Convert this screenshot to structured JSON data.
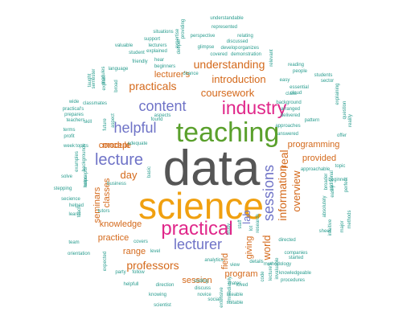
{
  "colors": {
    "gray": "#6e6e6e",
    "darkgray": "#555555",
    "green": "#5aa02c",
    "pink": "#e0278a",
    "orange": "#d4691b",
    "purple": "#6f73c7",
    "teal": "#2a9d8f",
    "yellow": "#f0a010",
    "blue": "#4a78b5"
  },
  "words": [
    {
      "text": "data",
      "size": 62,
      "color": "darkgray",
      "rotate": 0
    },
    {
      "text": "science",
      "size": 46,
      "color": "yellow",
      "rotate": 0
    },
    {
      "text": "teaching",
      "size": 34,
      "color": "green",
      "rotate": 0
    },
    {
      "text": "industry",
      "size": 23,
      "color": "pink",
      "rotate": 0
    },
    {
      "text": "practical",
      "size": 24,
      "color": "pink",
      "rotate": 0
    },
    {
      "text": "lecturer",
      "size": 18,
      "color": "purple",
      "rotate": 0
    },
    {
      "text": "lecture",
      "size": 20,
      "color": "purple",
      "rotate": 0
    },
    {
      "text": "helpful",
      "size": 18,
      "color": "purple",
      "rotate": 0
    },
    {
      "text": "content",
      "size": 18,
      "color": "purple",
      "rotate": 0
    },
    {
      "text": "sessions",
      "size": 18,
      "color": "purple",
      "rotate": 90
    },
    {
      "text": "information",
      "size": 14,
      "color": "orange",
      "rotate": 90
    },
    {
      "text": "real",
      "size": 14,
      "color": "orange",
      "rotate": 90
    },
    {
      "text": "overview",
      "size": 13,
      "color": "orange",
      "rotate": 90
    },
    {
      "text": "world",
      "size": 13,
      "color": "orange",
      "rotate": 90
    },
    {
      "text": "lab",
      "size": 13,
      "color": "purple",
      "rotate": 90
    },
    {
      "text": "professors",
      "size": 14,
      "color": "orange",
      "rotate": 0
    },
    {
      "text": "understanding",
      "size": 14,
      "color": "orange",
      "rotate": 0
    },
    {
      "text": "practicals",
      "size": 14,
      "color": "orange",
      "rotate": 0
    },
    {
      "text": "coursework",
      "size": 13,
      "color": "orange",
      "rotate": 0
    },
    {
      "text": "introduction",
      "size": 13,
      "color": "orange",
      "rotate": 0
    },
    {
      "text": "lecturer's",
      "size": 11,
      "color": "orange",
      "rotate": 0
    },
    {
      "text": "module",
      "size": 11,
      "color": "orange",
      "rotate": 0
    },
    {
      "text": "concept",
      "size": 11,
      "color": "orange",
      "rotate": 0
    },
    {
      "text": "day",
      "size": 13,
      "color": "orange",
      "rotate": 0
    },
    {
      "text": "knowledge",
      "size": 11,
      "color": "orange",
      "rotate": 0
    },
    {
      "text": "practice",
      "size": 11,
      "color": "orange",
      "rotate": 0
    },
    {
      "text": "range",
      "size": 11,
      "color": "orange",
      "rotate": 0
    },
    {
      "text": "session",
      "size": 11,
      "color": "orange",
      "rotate": 0
    },
    {
      "text": "program",
      "size": 11,
      "color": "orange",
      "rotate": 0
    },
    {
      "text": "programming",
      "size": 11,
      "color": "orange",
      "rotate": 0
    },
    {
      "text": "provided",
      "size": 11,
      "color": "orange",
      "rotate": 0
    },
    {
      "text": "giving",
      "size": 11,
      "color": "orange",
      "rotate": 90
    },
    {
      "text": "field",
      "size": 11,
      "color": "orange",
      "rotate": 90
    },
    {
      "text": "classes",
      "size": 11,
      "color": "orange",
      "rotate": 90
    },
    {
      "text": "seminars",
      "size": 11,
      "color": "orange",
      "rotate": 90
    },
    {
      "text": "situations",
      "size": 6,
      "color": "teal",
      "rotate": 0
    },
    {
      "text": "support",
      "size": 6,
      "color": "teal",
      "rotate": 0
    },
    {
      "text": "lecturers",
      "size": 6,
      "color": "teal",
      "rotate": 0
    },
    {
      "text": "explained",
      "size": 6,
      "color": "teal",
      "rotate": 0
    },
    {
      "text": "valuable",
      "size": 6,
      "color": "teal",
      "rotate": 0
    },
    {
      "text": "student",
      "size": 6,
      "color": "teal",
      "rotate": 0
    },
    {
      "text": "friendly",
      "size": 6,
      "color": "teal",
      "rotate": 0
    },
    {
      "text": "hear",
      "size": 6,
      "color": "teal",
      "rotate": 0
    },
    {
      "text": "beginners",
      "size": 6,
      "color": "teal",
      "rotate": 0
    },
    {
      "text": "language",
      "size": 6,
      "color": "teal",
      "rotate": 0
    },
    {
      "text": "understandable",
      "size": 6,
      "color": "teal",
      "rotate": 0
    },
    {
      "text": "represented",
      "size": 6,
      "color": "teal",
      "rotate": 0
    },
    {
      "text": "perspective",
      "size": 6,
      "color": "teal",
      "rotate": 0
    },
    {
      "text": "relating",
      "size": 6,
      "color": "teal",
      "rotate": 0
    },
    {
      "text": "discussed",
      "size": 6,
      "color": "teal",
      "rotate": 0
    },
    {
      "text": "glimpse",
      "size": 6,
      "color": "teal",
      "rotate": 0
    },
    {
      "text": "develop",
      "size": 6,
      "color": "teal",
      "rotate": 0
    },
    {
      "text": "organizes",
      "size": 6,
      "color": "teal",
      "rotate": 0
    },
    {
      "text": "covered",
      "size": 6,
      "color": "teal",
      "rotate": 0
    },
    {
      "text": "demonstration",
      "size": 6,
      "color": "teal",
      "rotate": 0
    },
    {
      "text": "chance",
      "size": 6,
      "color": "teal",
      "rotate": 0
    },
    {
      "text": "reading",
      "size": 6,
      "color": "teal",
      "rotate": 0
    },
    {
      "text": "people",
      "size": 6,
      "color": "teal",
      "rotate": 0
    },
    {
      "text": "students",
      "size": 6,
      "color": "teal",
      "rotate": 0
    },
    {
      "text": "easy",
      "size": 6,
      "color": "teal",
      "rotate": 0
    },
    {
      "text": "sector",
      "size": 6,
      "color": "teal",
      "rotate": 0
    },
    {
      "text": "class",
      "size": 6,
      "color": "teal",
      "rotate": 0
    },
    {
      "text": "essential",
      "size": 6,
      "color": "teal",
      "rotate": 0
    },
    {
      "text": "cloud",
      "size": 6,
      "color": "teal",
      "rotate": 0
    },
    {
      "text": "background",
      "size": 6,
      "color": "teal",
      "rotate": 0
    },
    {
      "text": "arranged",
      "size": 6,
      "color": "teal",
      "rotate": 0
    },
    {
      "text": "delivered",
      "size": 6,
      "color": "teal",
      "rotate": 0
    },
    {
      "text": "approaches",
      "size": 6,
      "color": "teal",
      "rotate": 0
    },
    {
      "text": "answered",
      "size": 6,
      "color": "teal",
      "rotate": 0
    },
    {
      "text": "wide",
      "size": 6,
      "color": "teal",
      "rotate": 0
    },
    {
      "text": "practical's",
      "size": 6,
      "color": "teal",
      "rotate": 0
    },
    {
      "text": "prepares",
      "size": 6,
      "color": "teal",
      "rotate": 0
    },
    {
      "text": "teachers",
      "size": 6,
      "color": "teal",
      "rotate": 0
    },
    {
      "text": "skill",
      "size": 6,
      "color": "teal",
      "rotate": 0
    },
    {
      "text": "terms",
      "size": 6,
      "color": "teal",
      "rotate": 0
    },
    {
      "text": "profit",
      "size": 6,
      "color": "teal",
      "rotate": 0
    },
    {
      "text": "week",
      "size": 6,
      "color": "teal",
      "rotate": 0
    },
    {
      "text": "topics",
      "size": 6,
      "color": "teal",
      "rotate": 0
    },
    {
      "text": "solve",
      "size": 6,
      "color": "teal",
      "rotate": 0
    },
    {
      "text": "stepping",
      "size": 6,
      "color": "teal",
      "rotate": 0
    },
    {
      "text": "secience",
      "size": 6,
      "color": "teal",
      "rotate": 0
    },
    {
      "text": "helped",
      "size": 6,
      "color": "teal",
      "rotate": 0
    },
    {
      "text": "learnt",
      "size": 6,
      "color": "teal",
      "rotate": 0
    },
    {
      "text": "team",
      "size": 6,
      "color": "teal",
      "rotate": 0
    },
    {
      "text": "orientation",
      "size": 6,
      "color": "teal",
      "rotate": 0
    },
    {
      "text": "adequate",
      "size": 6,
      "color": "teal",
      "rotate": 0
    },
    {
      "text": "business",
      "size": 6,
      "color": "teal",
      "rotate": 0
    },
    {
      "text": "tutors",
      "size": 6,
      "color": "teal",
      "rotate": 0
    },
    {
      "text": "covers",
      "size": 6,
      "color": "teal",
      "rotate": 0
    },
    {
      "text": "level",
      "size": 6,
      "color": "teal",
      "rotate": 0
    },
    {
      "text": "party",
      "size": 6,
      "color": "teal",
      "rotate": 0
    },
    {
      "text": "follow",
      "size": 6,
      "color": "teal",
      "rotate": 0
    },
    {
      "text": "helpfull",
      "size": 6,
      "color": "teal",
      "rotate": 0
    },
    {
      "text": "direction",
      "size": 6,
      "color": "teal",
      "rotate": 0
    },
    {
      "text": "knowing",
      "size": 6,
      "color": "teal",
      "rotate": 0
    },
    {
      "text": "scientist",
      "size": 6,
      "color": "teal",
      "rotate": 0
    },
    {
      "text": "coding",
      "size": 6,
      "color": "teal",
      "rotate": 0
    },
    {
      "text": "discuss",
      "size": 6,
      "color": "teal",
      "rotate": 0
    },
    {
      "text": "novice",
      "size": 6,
      "color": "teal",
      "rotate": 0
    },
    {
      "text": "social",
      "size": 6,
      "color": "teal",
      "rotate": 0
    },
    {
      "text": "mates",
      "size": 6,
      "color": "teal",
      "rotate": 0
    },
    {
      "text": "loved",
      "size": 6,
      "color": "teal",
      "rotate": 0
    },
    {
      "text": "likeable",
      "size": 6,
      "color": "teal",
      "rotate": 0
    },
    {
      "text": "suitable",
      "size": 6,
      "color": "teal",
      "rotate": 0
    },
    {
      "text": "analytics",
      "size": 6,
      "color": "teal",
      "rotate": 0
    },
    {
      "text": "view",
      "size": 6,
      "color": "teal",
      "rotate": 0
    },
    {
      "text": "details",
      "size": 6,
      "color": "teal",
      "rotate": 0
    },
    {
      "text": "methodology",
      "size": 6,
      "color": "teal",
      "rotate": 0
    },
    {
      "text": "companies",
      "size": 6,
      "color": "teal",
      "rotate": 0
    },
    {
      "text": "started",
      "size": 6,
      "color": "teal",
      "rotate": 0
    },
    {
      "text": "directed",
      "size": 6,
      "color": "teal",
      "rotate": 0
    },
    {
      "text": "sheet",
      "size": 6,
      "color": "teal",
      "rotate": 0
    },
    {
      "text": "knowledgeable",
      "size": 6,
      "color": "teal",
      "rotate": 0
    },
    {
      "text": "procedures",
      "size": 6,
      "color": "teal",
      "rotate": 0
    },
    {
      "text": "approachable",
      "size": 6,
      "color": "teal",
      "rotate": 0
    },
    {
      "text": "beginner",
      "size": 6,
      "color": "teal",
      "rotate": 0
    },
    {
      "text": "topic",
      "size": 6,
      "color": "teal",
      "rotate": 0
    },
    {
      "text": "offer",
      "size": 6,
      "color": "teal",
      "rotate": 0
    },
    {
      "text": "pattern",
      "size": 6,
      "color": "teal",
      "rotate": 0
    },
    {
      "text": "classmates",
      "size": 6,
      "color": "teal",
      "rotate": 0
    },
    {
      "text": "basic",
      "size": 6,
      "color": "teal",
      "rotate": 90
    },
    {
      "text": "aspects",
      "size": 6,
      "color": "teal",
      "rotate": 0
    },
    {
      "text": "found",
      "size": 6,
      "color": "teal",
      "rotate": 0
    },
    {
      "text": "expertise",
      "size": 6,
      "color": "teal",
      "rotate": 90
    },
    {
      "text": "providing",
      "size": 6,
      "color": "teal",
      "rotate": 90
    },
    {
      "text": "deeper",
      "size": 6,
      "color": "teal",
      "rotate": 90
    },
    {
      "text": "relevant",
      "size": 6,
      "color": "teal",
      "rotate": 90
    },
    {
      "text": "semester",
      "size": 6,
      "color": "teal",
      "rotate": 90
    },
    {
      "text": "taught",
      "size": 6,
      "color": "teal",
      "rotate": 90
    },
    {
      "text": "modules",
      "size": 6,
      "color": "teal",
      "rotate": 90
    },
    {
      "text": "explain",
      "size": 6,
      "color": "teal",
      "rotate": 90
    },
    {
      "text": "broad",
      "size": 6,
      "color": "teal",
      "rotate": 90
    },
    {
      "text": "future",
      "size": 6,
      "color": "teal",
      "rotate": 90
    },
    {
      "text": "aspect",
      "size": 6,
      "color": "teal",
      "rotate": 90
    },
    {
      "text": "examples",
      "size": 6,
      "color": "teal",
      "rotate": 90
    },
    {
      "text": "backgrounds",
      "size": 6,
      "color": "teal",
      "rotate": 90
    },
    {
      "text": "concepts",
      "size": 6,
      "color": "teal",
      "rotate": 90
    },
    {
      "text": "helps",
      "size": 6,
      "color": "teal",
      "rotate": 90
    },
    {
      "text": "teach",
      "size": 6,
      "color": "teal",
      "rotate": 90
    },
    {
      "text": "study",
      "size": 6,
      "color": "teal",
      "rotate": 90
    },
    {
      "text": "staff",
      "size": 6,
      "color": "teal",
      "rotate": 90
    },
    {
      "text": "lot",
      "size": 6,
      "color": "teal",
      "rotate": 90
    },
    {
      "text": "research",
      "size": 6,
      "color": "teal",
      "rotate": 90
    },
    {
      "text": "code",
      "size": 6,
      "color": "teal",
      "rotate": 90
    },
    {
      "text": "lecture's",
      "size": 6,
      "color": "teal",
      "rotate": 90
    },
    {
      "text": "invaluable",
      "size": 6,
      "color": "teal",
      "rotate": 90
    },
    {
      "text": "immediately",
      "size": 6,
      "color": "teal",
      "rotate": 90
    },
    {
      "text": "extensive",
      "size": 6,
      "color": "teal",
      "rotate": 90
    },
    {
      "text": "expected",
      "size": 6,
      "color": "teal",
      "rotate": 90
    },
    {
      "text": "question",
      "size": 6,
      "color": "teal",
      "rotate": 90
    },
    {
      "text": "reality",
      "size": 6,
      "color": "teal",
      "rotate": 90
    },
    {
      "text": "explaining",
      "size": 6,
      "color": "teal",
      "rotate": 90
    },
    {
      "text": "major",
      "size": 6,
      "color": "teal",
      "rotate": 90
    },
    {
      "text": "methods",
      "size": 6,
      "color": "teal",
      "rotate": 90
    },
    {
      "text": "easily",
      "size": 6,
      "color": "teal",
      "rotate": 90
    },
    {
      "text": "absolutely",
      "size": 6,
      "color": "teal",
      "rotate": 90
    },
    {
      "text": "broader",
      "size": 6,
      "color": "teal",
      "rotate": 90
    },
    {
      "text": "additional",
      "size": 6,
      "color": "teal",
      "rotate": 90
    },
    {
      "text": "perfect",
      "size": 6,
      "color": "teal",
      "rotate": 90
    },
    {
      "text": "intuitive",
      "size": 6,
      "color": "teal",
      "rotate": 90
    }
  ]
}
